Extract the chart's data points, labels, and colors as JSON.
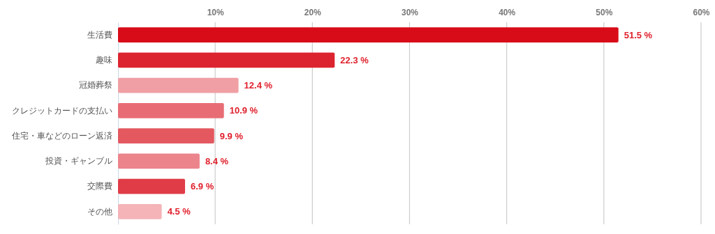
{
  "chart_data": {
    "type": "bar",
    "orientation": "horizontal",
    "categories": [
      "生活費",
      "趣味",
      "冠婚葬祭",
      "クレジットカードの支払い",
      "住宅・車などのローン返済",
      "投資・ギャンブル",
      "交際費",
      "その他"
    ],
    "values": [
      51.5,
      22.3,
      12.4,
      10.9,
      9.9,
      8.4,
      6.9,
      4.5
    ],
    "colors": [
      "#d80c18",
      "#dc2430",
      "#f0a0a4",
      "#e86c74",
      "#e45860",
      "#ec848c",
      "#e03c48",
      "#f4b4b8"
    ],
    "value_labels": [
      "51.5 %",
      "22.3 %",
      "12.4 %",
      "10.9 %",
      "9.9 %",
      "8.4 %",
      "6.9 %",
      "4.5 %"
    ],
    "xlim": [
      0,
      60
    ],
    "xticks": [
      {
        "value": 10,
        "label": "10%"
      },
      {
        "value": 20,
        "label": "20%"
      },
      {
        "value": 30,
        "label": "30%"
      },
      {
        "value": 40,
        "label": "40%"
      },
      {
        "value": 50,
        "label": "50%"
      },
      {
        "value": 60,
        "label": "60%"
      }
    ],
    "grid": "x"
  }
}
